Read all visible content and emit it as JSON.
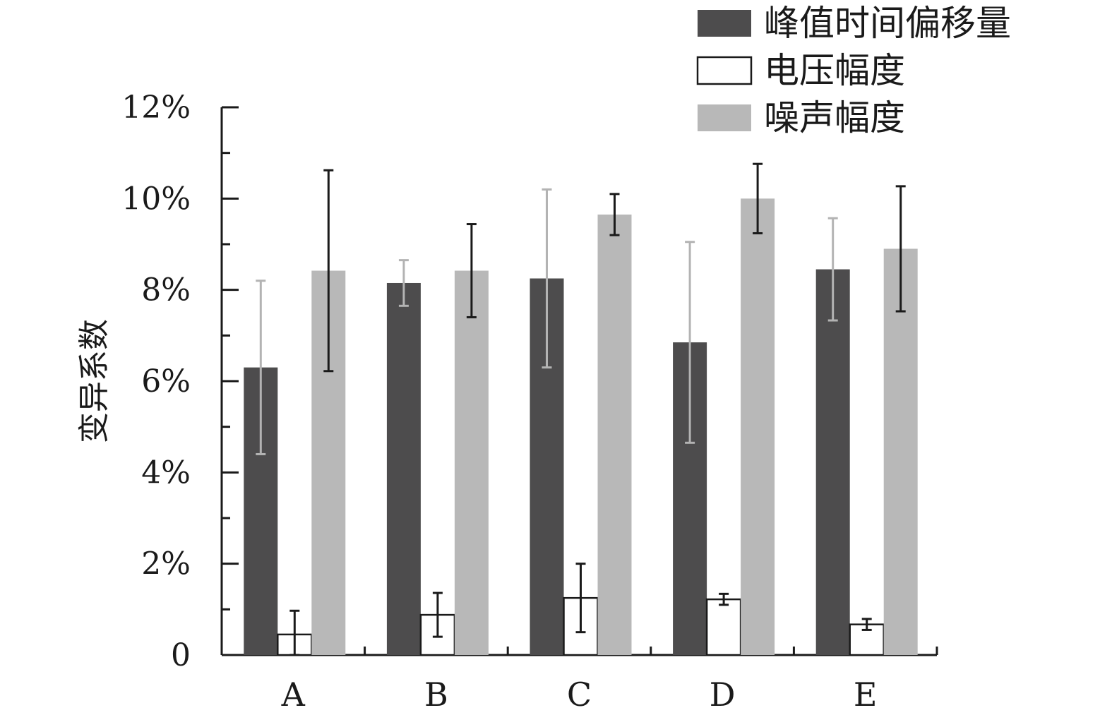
{
  "chart_data": {
    "type": "bar",
    "title": "",
    "xlabel": "",
    "ylabel": "变异系数",
    "ylim": [
      0,
      12
    ],
    "y_ticks": [
      "0",
      "2%",
      "4%",
      "6%",
      "8%",
      "10%",
      "12%"
    ],
    "y_tick_values": [
      0,
      2,
      4,
      6,
      8,
      10,
      12
    ],
    "categories": [
      "A",
      "B",
      "C",
      "D",
      "E"
    ],
    "grid": false,
    "legend_position": "top-right",
    "series": [
      {
        "name": "峰值时间偏移量",
        "color": "#4d4c4d",
        "error_color": "#b3b3b3",
        "values": [
          6.3,
          8.15,
          8.25,
          6.85,
          8.45
        ],
        "error": [
          1.9,
          0.5,
          1.95,
          2.2,
          1.12
        ]
      },
      {
        "name": "电压幅度",
        "color": "#ffffff",
        "error_color": "#1a1a1a",
        "values": [
          0.45,
          0.88,
          1.25,
          1.22,
          0.67
        ],
        "error": [
          0.52,
          0.48,
          0.75,
          0.12,
          0.12
        ]
      },
      {
        "name": "噪声幅度",
        "color": "#b8b8b8",
        "error_color": "#1a1a1a",
        "values": [
          8.42,
          8.42,
          9.65,
          10.0,
          8.9
        ],
        "error": [
          2.2,
          1.02,
          0.45,
          0.76,
          1.37
        ]
      }
    ]
  }
}
